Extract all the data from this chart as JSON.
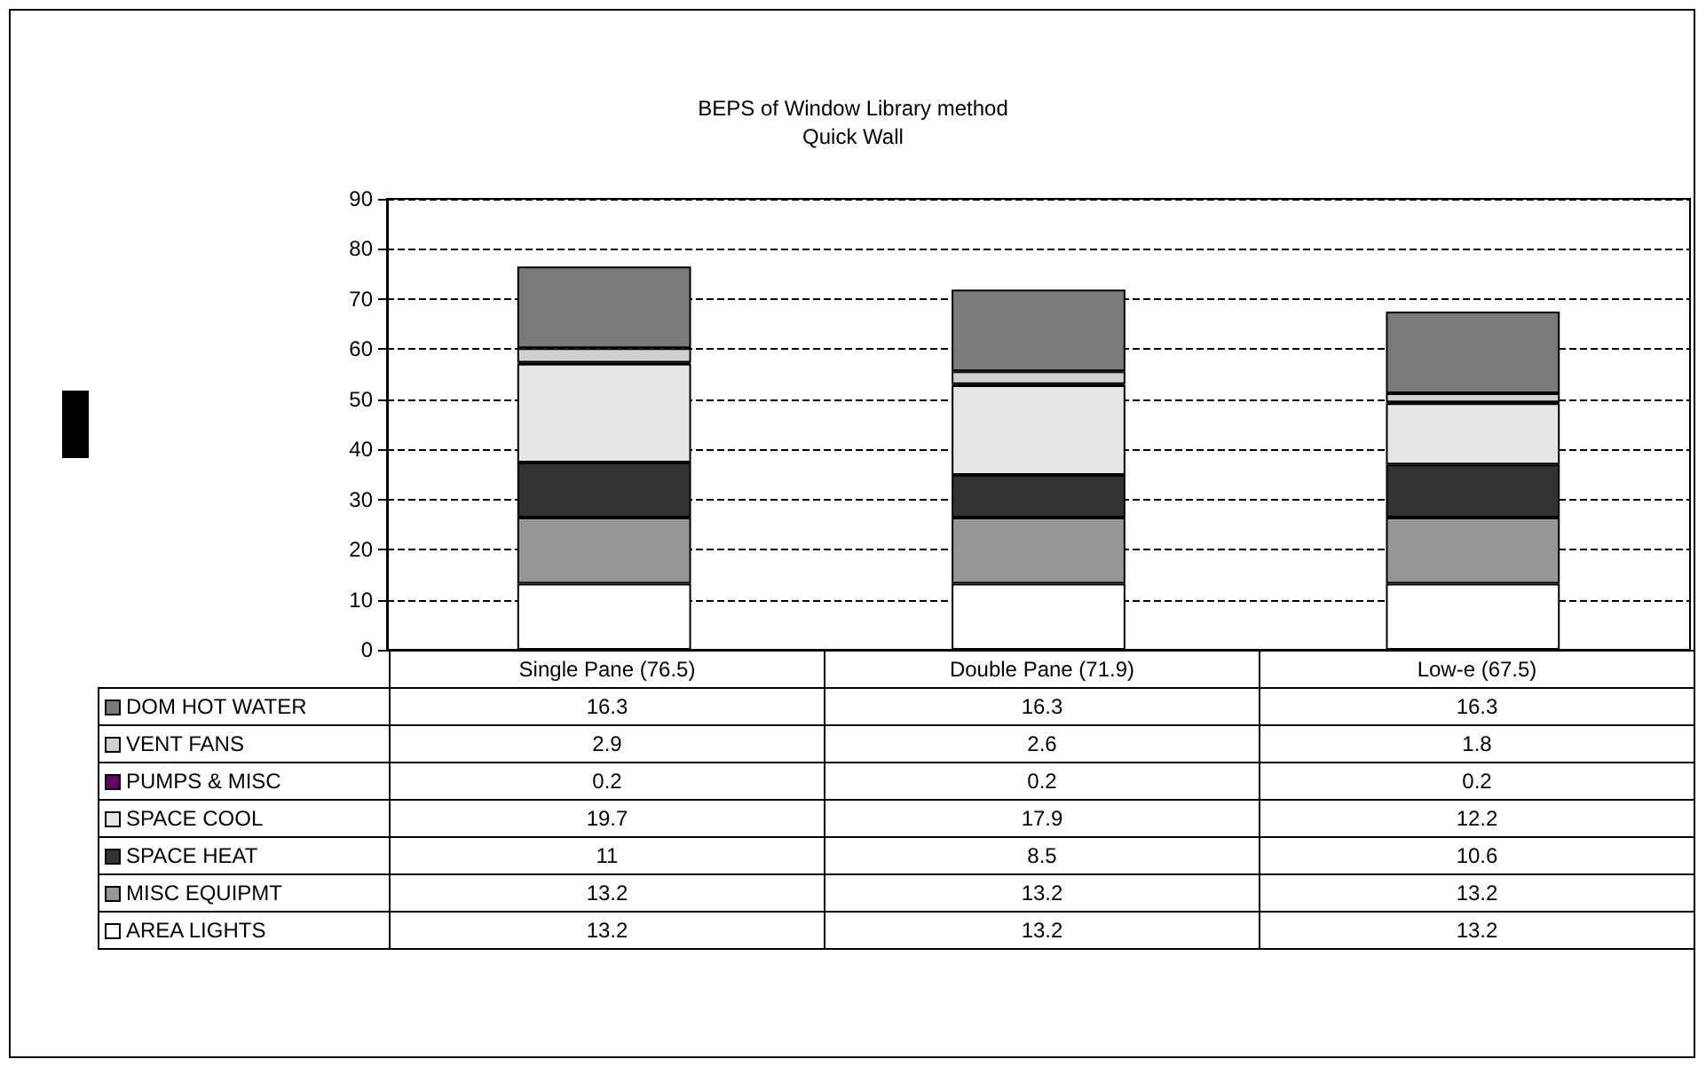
{
  "chart_data": {
    "type": "bar",
    "title": "BEPS of Window Library method",
    "subtitle": "Quick Wall",
    "categories": [
      "Single Pane (76.5)",
      "Double Pane (71.9)",
      "Low-e (67.5)"
    ],
    "stacked": true,
    "series": [
      {
        "name": "AREA LIGHTS",
        "color": "#ffffff",
        "values": [
          13.2,
          13.2,
          13.2
        ],
        "value_labels": [
          "13.2",
          "13.2",
          "13.2"
        ]
      },
      {
        "name": "MISC EQUIPMT",
        "color": "#969696",
        "values": [
          13.2,
          13.2,
          13.2
        ],
        "value_labels": [
          "13.2",
          "13.2",
          "13.2"
        ]
      },
      {
        "name": "SPACE HEAT",
        "color": "#333333",
        "values": [
          11,
          8.5,
          10.6
        ],
        "value_labels": [
          "11",
          "8.5",
          "10.6"
        ]
      },
      {
        "name": "SPACE COOL",
        "color": "#e6e6e6",
        "values": [
          19.7,
          17.9,
          12.2
        ],
        "value_labels": [
          "19.7",
          "17.9",
          "12.2"
        ]
      },
      {
        "name": "PUMPS & MISC",
        "color": "#660066",
        "values": [
          0.2,
          0.2,
          0.2
        ],
        "value_labels": [
          "0.2",
          "0.2",
          "0.2"
        ]
      },
      {
        "name": "VENT FANS",
        "color": "#d0d0d0",
        "values": [
          2.9,
          2.6,
          1.8
        ],
        "value_labels": [
          "2.9",
          "2.6",
          "1.8"
        ]
      },
      {
        "name": "DOM HOT WATER",
        "color": "#7a7a7a",
        "values": [
          16.3,
          16.3,
          16.3
        ],
        "value_labels": [
          "16.3",
          "16.3",
          "16.3"
        ]
      }
    ],
    "ylim": [
      0,
      90
    ],
    "yticks": [
      0,
      10,
      20,
      30,
      40,
      50,
      60,
      70,
      80,
      90
    ],
    "grid": "y",
    "legend": "bottom"
  }
}
